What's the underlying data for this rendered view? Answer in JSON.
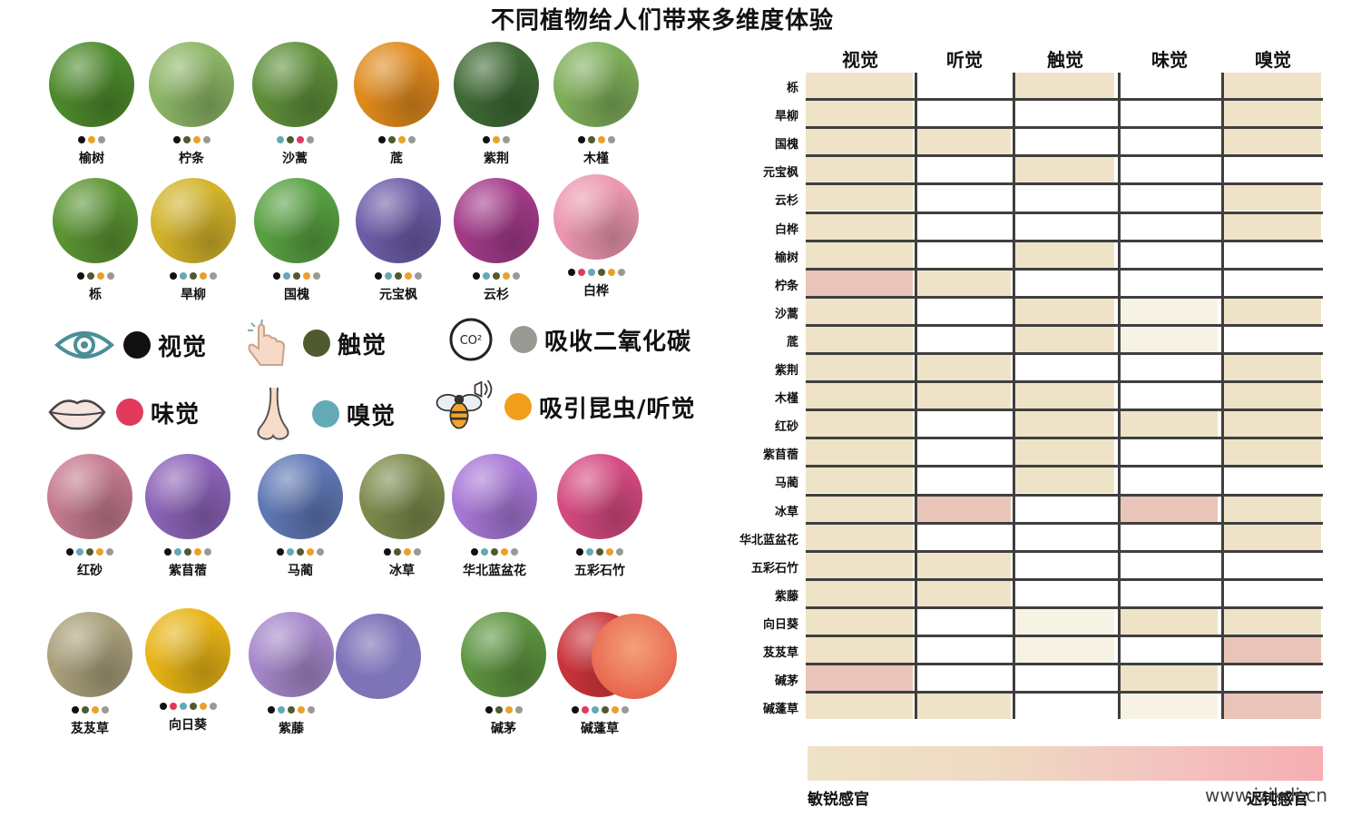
{
  "title": "不同植物给人们带来多维度体验",
  "palette": {
    "black": "#111111",
    "green": "#4f5b2e",
    "orange": "#e8a12a",
    "grey": "#9a9a94",
    "blue": "#63a9b6",
    "pink": "#e23a5c",
    "cell_beige": "#eee3c6",
    "cell_light": "#f7f3e4",
    "cell_pink": "#e9c4b8"
  },
  "plants": [
    {
      "name": "榆树",
      "dots": [
        "black",
        "orange",
        "grey"
      ],
      "color": "#4d8a2c"
    },
    {
      "name": "柠条",
      "dots": [
        "black",
        "green",
        "orange",
        "grey"
      ],
      "color": "#8cb565"
    },
    {
      "name": "沙蒿",
      "dots": [
        "blue",
        "green",
        "pink",
        "grey"
      ],
      "color": "#5f8f3a"
    },
    {
      "name": "菧",
      "dots": [
        "black",
        "green",
        "orange",
        "grey"
      ],
      "color": "#e08a1d"
    },
    {
      "name": "紫荆",
      "dots": [
        "black",
        "orange",
        "grey"
      ],
      "color": "#3f6a35"
    },
    {
      "name": "木槿",
      "dots": [
        "black",
        "green",
        "orange",
        "grey"
      ],
      "color": "#7fae5a"
    },
    {
      "name": "栎",
      "dots": [
        "black",
        "green",
        "orange",
        "grey"
      ],
      "color": "#5b9433"
    },
    {
      "name": "旱柳",
      "dots": [
        "black",
        "blue",
        "green",
        "orange",
        "grey"
      ],
      "color": "#d2b32a"
    },
    {
      "name": "国槐",
      "dots": [
        "black",
        "blue",
        "green",
        "orange",
        "grey"
      ],
      "color": "#58a042"
    },
    {
      "name": "元宝枫",
      "dots": [
        "black",
        "blue",
        "green",
        "orange",
        "grey"
      ],
      "color": "#6d5ca8"
    },
    {
      "name": "云杉",
      "dots": [
        "black",
        "blue",
        "green",
        "orange",
        "grey"
      ],
      "color": "#a43b8a"
    },
    {
      "name": "白桦",
      "dots": [
        "black",
        "pink",
        "blue",
        "green",
        "orange",
        "grey"
      ],
      "color": "#ec97b0"
    },
    {
      "name": "红砂",
      "dots": [
        "black",
        "blue",
        "green",
        "orange",
        "grey"
      ],
      "color": "#c47a8e"
    },
    {
      "name": "紫苜蓿",
      "dots": [
        "black",
        "blue",
        "green",
        "orange",
        "grey"
      ],
      "color": "#8c63b8"
    },
    {
      "name": "马蔺",
      "dots": [
        "black",
        "blue",
        "green",
        "orange",
        "grey"
      ],
      "color": "#5f77b4"
    },
    {
      "name": "冰草",
      "dots": [
        "black",
        "green",
        "orange",
        "grey"
      ],
      "color": "#7c8a4c"
    },
    {
      "name": "华北蓝盆花",
      "dots": [
        "black",
        "blue",
        "green",
        "orange",
        "grey"
      ],
      "color": "#a777d6"
    },
    {
      "name": "五彩石竹",
      "dots": [
        "black",
        "blue",
        "green",
        "orange",
        "grey"
      ],
      "color": "#d54a80"
    },
    {
      "name": "芨芨草",
      "dots": [
        "black",
        "green",
        "orange",
        "grey"
      ],
      "color": "#a99f7a"
    },
    {
      "name": "向日葵",
      "dots": [
        "black",
        "pink",
        "blue",
        "green",
        "orange",
        "grey"
      ],
      "color": "#e7b416"
    },
    {
      "name": "紫藤",
      "dots": [
        "black",
        "blue",
        "green",
        "orange",
        "grey"
      ],
      "color": "#a587c9"
    },
    {
      "name": "碱茅",
      "dots": [
        "black",
        "green",
        "orange",
        "grey"
      ],
      "color": "#5d9440"
    },
    {
      "name": "碱蓬草",
      "dots": [
        "black",
        "pink",
        "blue",
        "green",
        "orange",
        "grey"
      ],
      "color": "#c9343a"
    }
  ],
  "legend": {
    "visual": "视觉",
    "touch": "触觉",
    "co2": "吸收二氧化碳",
    "co2_icon_text": "CO²",
    "taste": "味觉",
    "smell": "嗅觉",
    "insects": "吸引昆虫/听觉"
  },
  "matrix": {
    "columns": [
      "视觉",
      "听觉",
      "触觉",
      "味觉",
      "嗅觉"
    ],
    "rows": [
      "栎",
      "旱柳",
      "国槐",
      "元宝枫",
      "云杉",
      "白桦",
      "榆树",
      "柠条",
      "沙蒿",
      "菧",
      "紫荆",
      "木槿",
      "红砂",
      "紫苜蓿",
      "马蔺",
      "冰草",
      "华北蓝盆花",
      "五彩石竹",
      "紫藤",
      "向日葵",
      "芨芨草",
      "碱茅",
      "碱蓬草"
    ],
    "cells": [
      [
        "b",
        "w",
        "b",
        "w",
        "b"
      ],
      [
        "b",
        "w",
        "w",
        "w",
        "b"
      ],
      [
        "b",
        "b",
        "w",
        "w",
        "b"
      ],
      [
        "b",
        "w",
        "b",
        "w",
        "w"
      ],
      [
        "b",
        "w",
        "w",
        "w",
        "b"
      ],
      [
        "b",
        "w",
        "w",
        "w",
        "b"
      ],
      [
        "b",
        "w",
        "b",
        "w",
        "w"
      ],
      [
        "p",
        "b",
        "w",
        "w",
        "w"
      ],
      [
        "b",
        "w",
        "b",
        "l",
        "b"
      ],
      [
        "b",
        "w",
        "b",
        "l",
        "w"
      ],
      [
        "b",
        "b",
        "w",
        "w",
        "b"
      ],
      [
        "b",
        "b",
        "b",
        "w",
        "b"
      ],
      [
        "b",
        "w",
        "b",
        "b",
        "b"
      ],
      [
        "b",
        "w",
        "b",
        "w",
        "b"
      ],
      [
        "b",
        "w",
        "b",
        "w",
        "w"
      ],
      [
        "b",
        "p",
        "w",
        "p",
        "b"
      ],
      [
        "b",
        "w",
        "w",
        "w",
        "b"
      ],
      [
        "b",
        "b",
        "w",
        "w",
        "w"
      ],
      [
        "b",
        "b",
        "w",
        "w",
        "w"
      ],
      [
        "b",
        "w",
        "l",
        "b",
        "b"
      ],
      [
        "b",
        "w",
        "l",
        "w",
        "p"
      ],
      [
        "p",
        "w",
        "w",
        "b",
        "w"
      ],
      [
        "b",
        "b",
        "w",
        "l",
        "p"
      ]
    ]
  },
  "scale": {
    "left_label": "敏锐感官",
    "right_label": "迟钝感官"
  },
  "watermark": "www.jzikdi.cn"
}
